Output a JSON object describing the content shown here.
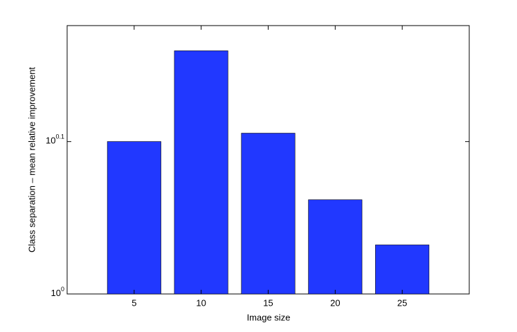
{
  "chart_data": {
    "type": "bar",
    "x_label": "Image size",
    "y_label": "Class separation – mean relative improvement",
    "x": [
      5,
      10,
      15,
      20,
      25
    ],
    "values": [
      1.259,
      1.444,
      1.275,
      1.153,
      1.077
    ],
    "color": "#2138ff",
    "bar_width": 4,
    "xlim": [
      0,
      30
    ],
    "xticks": [
      5,
      10,
      15,
      20,
      25
    ],
    "ylim": [
      1,
      1.5
    ],
    "yscale": "log",
    "yticks": [
      {
        "value": 1,
        "label": "10^0"
      },
      {
        "value": 1.2589,
        "label": "10^0.1"
      }
    ],
    "grid": false
  }
}
